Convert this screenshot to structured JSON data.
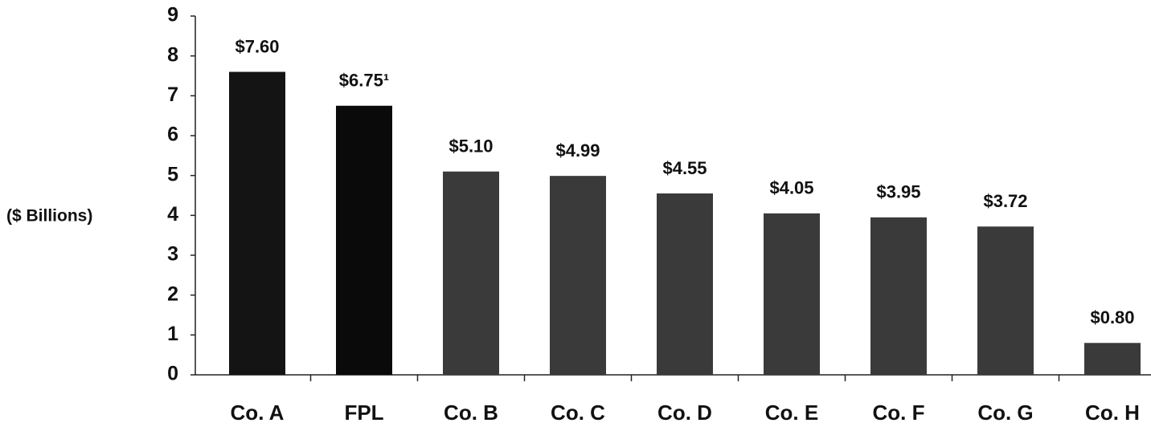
{
  "chart_data": {
    "type": "bar",
    "y_label": "($ Billions)",
    "categories": [
      "Co. A",
      "FPL",
      "Co. B",
      "Co. C",
      "Co. D",
      "Co. E",
      "Co. F",
      "Co. G",
      "Co. H"
    ],
    "values": [
      7.6,
      6.75,
      5.1,
      4.99,
      4.55,
      4.05,
      3.95,
      3.72,
      0.8
    ],
    "value_labels": [
      "$7.60",
      "$6.75¹",
      "$5.10",
      "$4.99",
      "$4.55",
      "$4.05",
      "$3.95",
      "$3.72",
      "$0.80"
    ],
    "colors": [
      "#141414",
      "#0a0a0a",
      "#3a3a3a",
      "#3a3a3a",
      "#3a3a3a",
      "#3a3a3a",
      "#3a3a3a",
      "#3a3a3a",
      "#3a3a3a"
    ],
    "ylim": [
      0,
      9
    ],
    "yticks": [
      0,
      1,
      2,
      3,
      4,
      5,
      6,
      7,
      8,
      9
    ],
    "grid": false
  }
}
